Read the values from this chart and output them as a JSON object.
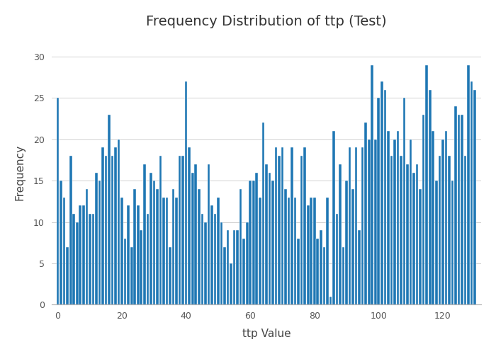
{
  "title": "Frequency Distribution of ttp (Test)",
  "xlabel": "ttp Value",
  "ylabel": "Frequency",
  "bar_color": "#1f77b4",
  "background_color": "#ffffff",
  "plot_bg_color": "#ffffff",
  "grid_color": "#d0d0d0",
  "ylim": [
    0,
    32
  ],
  "yticks": [
    0,
    5,
    10,
    15,
    20,
    25,
    30
  ],
  "title_fontsize": 14,
  "axis_fontsize": 11,
  "values": [
    25,
    15,
    13,
    7,
    18,
    11,
    10,
    12,
    12,
    14,
    11,
    11,
    16,
    15,
    19,
    18,
    23,
    18,
    19,
    20,
    13,
    8,
    12,
    7,
    14,
    12,
    9,
    17,
    11,
    16,
    15,
    14,
    18,
    13,
    13,
    7,
    14,
    13,
    18,
    18,
    27,
    19,
    16,
    17,
    14,
    11,
    10,
    17,
    12,
    11,
    13,
    10,
    7,
    9,
    5,
    9,
    9,
    14,
    8,
    10,
    15,
    15,
    16,
    13,
    22,
    17,
    16,
    15,
    19,
    18,
    19,
    14,
    13,
    19,
    13,
    8,
    18,
    19,
    12,
    13,
    13,
    8,
    9,
    7,
    13,
    1,
    21,
    11,
    17,
    7,
    15,
    19,
    14,
    19,
    9,
    19,
    22,
    20,
    29,
    20,
    25,
    27,
    26,
    21,
    18,
    20,
    21,
    18,
    25,
    17,
    20,
    16,
    17,
    14,
    23,
    29,
    26,
    21,
    15,
    18,
    20,
    21,
    18,
    15,
    24,
    23,
    23,
    18,
    29,
    27,
    26
  ],
  "xtick_positions": [
    0,
    20,
    40,
    60,
    80,
    100,
    120
  ],
  "xlim": [
    -2,
    132
  ]
}
